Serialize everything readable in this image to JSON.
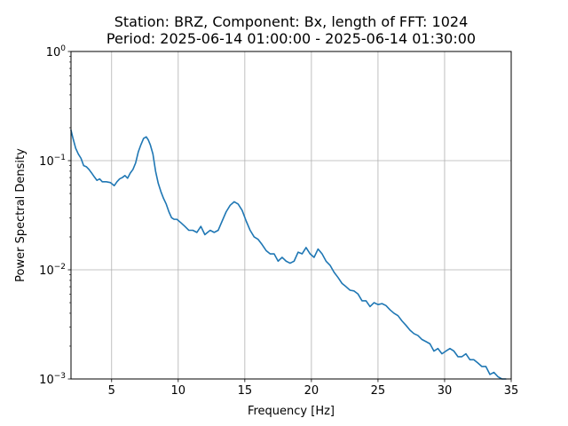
{
  "chart_data": {
    "type": "line",
    "title_lines": [
      "Station: BRZ, Component: Bx, length of FFT: 1024",
      "Period: 2025-06-14 01:00:00 - 2025-06-14 01:30:00"
    ],
    "xlabel": "Frequency [Hz]",
    "ylabel": "Power Spectral Density",
    "xlim": [
      1.95,
      35
    ],
    "ylim": [
      0.001,
      1
    ],
    "yscale": "log",
    "grid": true,
    "xticks": [
      5,
      10,
      15,
      20,
      25,
      30,
      35
    ],
    "yticks": [
      {
        "value": 1,
        "base": "10",
        "exp": "0"
      },
      {
        "value": 0.1,
        "base": "10",
        "exp": "−1"
      },
      {
        "value": 0.01,
        "base": "10",
        "exp": "−2"
      },
      {
        "value": 0.001,
        "base": "10",
        "exp": "−3"
      }
    ],
    "colors": {
      "line": "#1f77b4",
      "grid": "#b0b0b0",
      "axes": "#000000"
    },
    "series": [
      {
        "x": [
          1.95,
          2.1,
          2.3,
          2.5,
          2.7,
          2.9,
          3.1,
          3.3,
          3.5,
          3.7,
          3.9,
          4.1,
          4.3,
          4.6,
          4.9,
          5.2,
          5.4,
          5.6,
          5.8,
          6.0,
          6.2,
          6.4,
          6.6,
          6.8,
          7.0,
          7.2,
          7.4,
          7.6,
          7.75,
          7.9,
          8.1,
          8.3,
          8.5,
          8.7,
          8.9,
          9.1,
          9.3,
          9.5,
          9.7,
          9.9,
          10.2,
          10.5,
          10.8,
          11.1,
          11.4,
          11.7,
          12.0,
          12.2,
          12.4,
          12.7,
          13.0,
          13.3,
          13.6,
          13.9,
          14.2,
          14.5,
          14.8,
          15.1,
          15.4,
          15.7,
          16.0,
          16.3,
          16.6,
          16.9,
          17.2,
          17.5,
          17.8,
          18.1,
          18.4,
          18.7,
          19.0,
          19.3,
          19.6,
          19.9,
          20.2,
          20.5,
          20.8,
          21.1,
          21.4,
          21.7,
          22.0,
          22.3,
          22.6,
          22.9,
          23.2,
          23.5,
          23.8,
          24.1,
          24.4,
          24.7,
          25.0,
          25.3,
          25.6,
          25.9,
          26.2,
          26.5,
          26.8,
          27.1,
          27.4,
          27.7,
          28.0,
          28.3,
          28.6,
          28.9,
          29.2,
          29.5,
          29.8,
          30.1,
          30.4,
          30.7,
          31.0,
          31.3,
          31.6,
          31.9,
          32.2,
          32.5,
          32.8,
          33.1,
          33.4,
          33.7,
          34.0,
          34.3,
          34.6
        ],
        "y": [
          0.19,
          0.16,
          0.13,
          0.115,
          0.105,
          0.09,
          0.088,
          0.083,
          0.077,
          0.071,
          0.066,
          0.068,
          0.064,
          0.064,
          0.063,
          0.059,
          0.064,
          0.068,
          0.07,
          0.073,
          0.069,
          0.077,
          0.083,
          0.095,
          0.12,
          0.14,
          0.16,
          0.165,
          0.155,
          0.14,
          0.115,
          0.08,
          0.062,
          0.052,
          0.045,
          0.04,
          0.034,
          0.03,
          0.029,
          0.029,
          0.027,
          0.025,
          0.023,
          0.023,
          0.022,
          0.025,
          0.021,
          0.022,
          0.023,
          0.022,
          0.023,
          0.028,
          0.034,
          0.039,
          0.042,
          0.04,
          0.035,
          0.028,
          0.023,
          0.02,
          0.019,
          0.017,
          0.015,
          0.014,
          0.014,
          0.012,
          0.013,
          0.012,
          0.0115,
          0.012,
          0.0145,
          0.014,
          0.016,
          0.014,
          0.013,
          0.0155,
          0.014,
          0.012,
          0.011,
          0.0095,
          0.0085,
          0.0075,
          0.007,
          0.0065,
          0.0064,
          0.006,
          0.0052,
          0.0052,
          0.0046,
          0.005,
          0.0048,
          0.0049,
          0.0047,
          0.0043,
          0.004,
          0.0038,
          0.0034,
          0.0031,
          0.0028,
          0.0026,
          0.0025,
          0.0023,
          0.0022,
          0.0021,
          0.0018,
          0.0019,
          0.0017,
          0.0018,
          0.0019,
          0.0018,
          0.0016,
          0.0016,
          0.0017,
          0.0015,
          0.0015,
          0.0014,
          0.0013,
          0.0013,
          0.0011,
          0.00115,
          0.00105,
          0.001,
          0.00098
        ]
      }
    ]
  }
}
